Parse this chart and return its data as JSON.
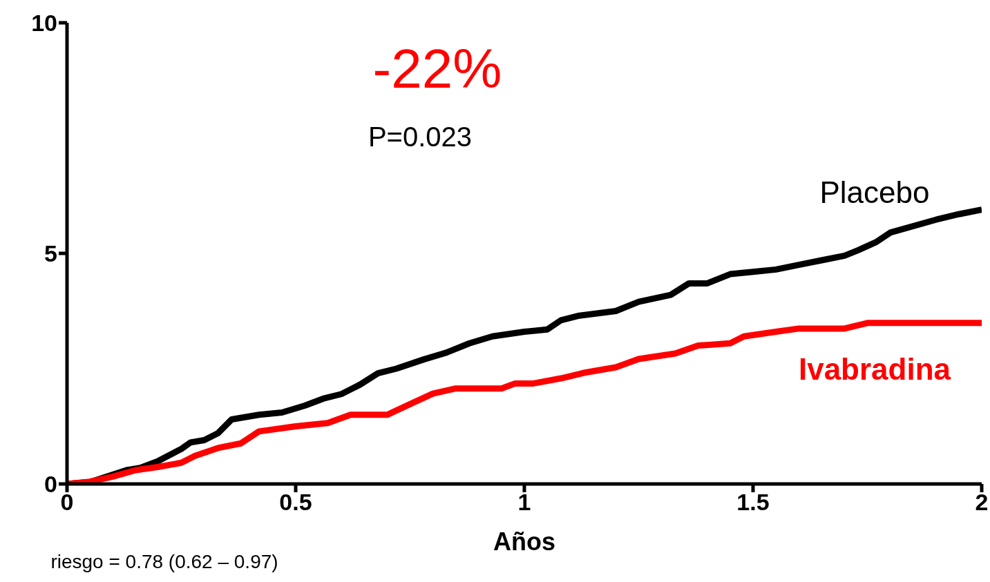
{
  "chart_data": {
    "type": "line",
    "xlabel": "Años",
    "xlim": [
      0,
      2
    ],
    "xticks": [
      0,
      0.5,
      1,
      1.5,
      2
    ],
    "ylim": [
      0,
      10
    ],
    "yticks": [
      0,
      5,
      10
    ],
    "grid": false,
    "legend": false,
    "marker": "none",
    "line_style": "solid",
    "annotations": [
      "-22%",
      "P=0.023",
      "riesgo = 0.78 (0.62 – 0.97)"
    ],
    "series": [
      {
        "name": "Placebo",
        "color": "#000000",
        "x": [
          0,
          0.05,
          0.1,
          0.13,
          0.16,
          0.2,
          0.25,
          0.27,
          0.3,
          0.33,
          0.36,
          0.42,
          0.47,
          0.52,
          0.56,
          0.6,
          0.64,
          0.68,
          0.72,
          0.78,
          0.83,
          0.88,
          0.93,
          1.0,
          1.05,
          1.08,
          1.12,
          1.2,
          1.25,
          1.32,
          1.36,
          1.4,
          1.45,
          1.5,
          1.55,
          1.6,
          1.65,
          1.7,
          1.73,
          1.77,
          1.8,
          1.9,
          1.95,
          2.0
        ],
        "values": [
          0,
          0.04,
          0.2,
          0.3,
          0.35,
          0.5,
          0.76,
          0.9,
          0.95,
          1.1,
          1.4,
          1.5,
          1.55,
          1.7,
          1.85,
          1.95,
          2.15,
          2.4,
          2.5,
          2.7,
          2.85,
          3.05,
          3.2,
          3.3,
          3.35,
          3.55,
          3.65,
          3.75,
          3.95,
          4.1,
          4.35,
          4.35,
          4.55,
          4.6,
          4.65,
          4.75,
          4.85,
          4.95,
          5.07,
          5.25,
          5.45,
          5.73,
          5.85,
          5.95
        ]
      },
      {
        "name": "Ivabradina",
        "color": "#ff0000",
        "x": [
          0,
          0.05,
          0.1,
          0.15,
          0.2,
          0.25,
          0.28,
          0.33,
          0.38,
          0.42,
          0.5,
          0.57,
          0.62,
          0.7,
          0.75,
          0.8,
          0.85,
          0.95,
          0.98,
          1.02,
          1.08,
          1.13,
          1.2,
          1.25,
          1.33,
          1.38,
          1.45,
          1.48,
          1.55,
          1.6,
          1.7,
          1.75,
          2.0
        ],
        "values": [
          0,
          0.05,
          0.16,
          0.3,
          0.37,
          0.46,
          0.61,
          0.78,
          0.88,
          1.14,
          1.25,
          1.32,
          1.5,
          1.5,
          1.73,
          1.96,
          2.07,
          2.07,
          2.18,
          2.18,
          2.29,
          2.41,
          2.53,
          2.71,
          2.83,
          3.0,
          3.05,
          3.2,
          3.3,
          3.37,
          3.37,
          3.49,
          3.49
        ]
      }
    ]
  }
}
